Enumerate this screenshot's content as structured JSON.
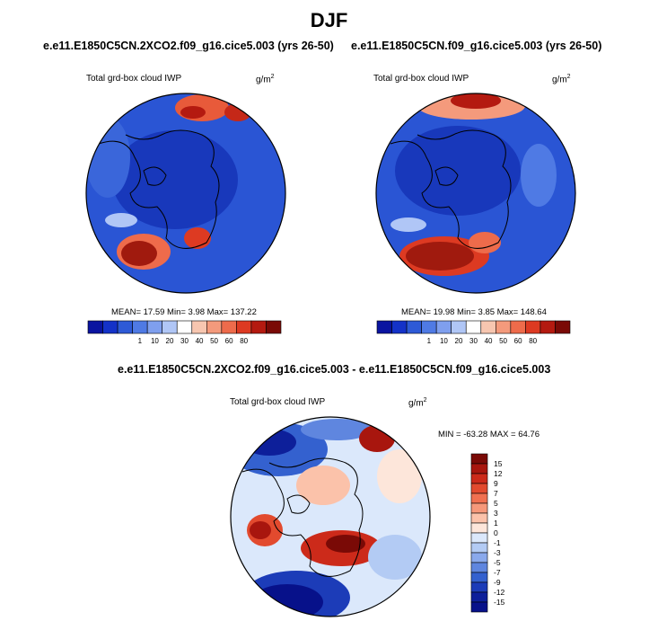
{
  "page": {
    "title": "DJF"
  },
  "panels": [
    {
      "title": "e.e11.E1850C5CN.2XCO2.f09_g16.cice5.003 (yrs 26-50)",
      "variable": "Total grd-box cloud IWP",
      "units": "g/m",
      "units_sup": "2",
      "stats": "MEAN=  17.59  Min=   3.98  Max= 137.22"
    },
    {
      "title": "e.e11.E1850C5CN.f09_g16.cice5.003 (yrs 26-50)",
      "variable": "Total grd-box cloud IWP",
      "units": "g/m",
      "units_sup": "2",
      "stats": "MEAN=  19.98  Min=   3.85  Max= 148.64"
    },
    {
      "title": "e.e11.E1850C5CN.2XCO2.f09_g16.cice5.003 - e.e11.E1850C5CN.f09_g16.cice5.003",
      "variable": "Total grd-box cloud IWP",
      "units": "g/m",
      "units_sup": "2",
      "stats": "MIN = -63.28 MAX =  64.76"
    }
  ],
  "chart_data": [
    {
      "type": "heatmap",
      "projection": "north polar stereographic",
      "title": "e.e11.E1850C5CN.2XCO2.f09_g16.cice5.003 (yrs 26-50)",
      "variable": "Total grd-box cloud IWP",
      "units": "g/m2",
      "stats": {
        "mean": 17.59,
        "min": 3.98,
        "max": 137.22
      },
      "colorbar": {
        "orientation": "horizontal",
        "levels": [
          1,
          10,
          20,
          30,
          40,
          50,
          60,
          80
        ],
        "labels": [
          "1",
          "10",
          "20",
          "30",
          "40",
          "50",
          "60",
          "80"
        ],
        "colors": [
          "#0a14a0",
          "#1432c8",
          "#2e5ad6",
          "#4f7ae4",
          "#7f9fee",
          "#b0c6f6",
          "#ffffff",
          "#f7c6b0",
          "#f49a7c",
          "#ee6b4b",
          "#dd3a22",
          "#b41a10",
          "#7a0a06"
        ]
      }
    },
    {
      "type": "heatmap",
      "projection": "north polar stereographic",
      "title": "e.e11.E1850C5CN.f09_g16.cice5.003 (yrs 26-50)",
      "variable": "Total grd-box cloud IWP",
      "units": "g/m2",
      "stats": {
        "mean": 19.98,
        "min": 3.85,
        "max": 148.64
      },
      "colorbar": {
        "orientation": "horizontal",
        "levels": [
          1,
          10,
          20,
          30,
          40,
          50,
          60,
          80
        ],
        "labels": [
          "1",
          "10",
          "20",
          "30",
          "40",
          "50",
          "60",
          "80"
        ],
        "colors": [
          "#0a14a0",
          "#1432c8",
          "#2e5ad6",
          "#4f7ae4",
          "#7f9fee",
          "#b0c6f6",
          "#ffffff",
          "#f7c6b0",
          "#f49a7c",
          "#ee6b4b",
          "#dd3a22",
          "#b41a10",
          "#7a0a06"
        ]
      }
    },
    {
      "type": "heatmap",
      "projection": "north polar stereographic",
      "title": "e.e11.E1850C5CN.2XCO2.f09_g16.cice5.003 - e.e11.E1850C5CN.f09_g16.cice5.003",
      "variable": "Total grd-box cloud IWP",
      "units": "g/m2",
      "stats": {
        "min": -63.28,
        "max": 64.76
      },
      "colorbar": {
        "orientation": "vertical",
        "levels": [
          15,
          12,
          9,
          7,
          5,
          3,
          1,
          0,
          -1,
          -3,
          -5,
          -7,
          -9,
          -12,
          -15
        ],
        "labels": [
          "15",
          "12",
          "9",
          "7",
          "5",
          "3",
          "1",
          "0",
          "-1",
          "-3",
          "-5",
          "-7",
          "-9",
          "-12",
          "-15"
        ],
        "colors": [
          "#7a0a06",
          "#a8160e",
          "#cc2a1a",
          "#e24a2e",
          "#f07050",
          "#f6987a",
          "#fbc2aa",
          "#fde6da",
          "#dbe8fb",
          "#b3cbf4",
          "#8aa9ec",
          "#5f86df",
          "#3461cf",
          "#1c3cb8",
          "#0d1f9a",
          "#07118a"
        ]
      }
    }
  ]
}
